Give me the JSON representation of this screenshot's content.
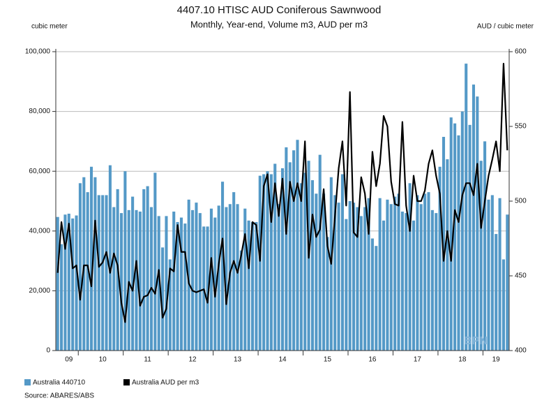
{
  "chart_data": {
    "type": "bar_line",
    "title": "4407.10 HTISC AUD Coniferous Sawnwood",
    "subtitle": "Monthly, Year-end, Volume m3, AUD per m3",
    "y_label": "cubic meter",
    "y2_label": "AUD / cubic meter",
    "source": "Source: ABARES/ABS",
    "watermark": "BPN",
    "grid": true,
    "categories": [
      null,
      null,
      null,
      "09",
      null,
      null,
      null,
      null,
      null,
      null,
      null,
      null,
      "10",
      null,
      null,
      null,
      null,
      null,
      null,
      null,
      null,
      null,
      null,
      null,
      "11",
      null,
      null,
      null,
      null,
      null,
      null,
      null,
      null,
      null,
      null,
      null,
      "12",
      null,
      null,
      null,
      null,
      null,
      null,
      null,
      null,
      null,
      null,
      null,
      "13",
      null,
      null,
      null,
      null,
      null,
      null,
      null,
      null,
      null,
      null,
      null,
      "14",
      null,
      null,
      null,
      null,
      null,
      null,
      null,
      null,
      null,
      null,
      null,
      "15",
      null,
      null,
      null,
      null,
      null,
      null,
      null,
      null,
      null,
      null,
      null,
      "16",
      null,
      null,
      null,
      null,
      null,
      null,
      null,
      null,
      null,
      null,
      null,
      "17",
      null,
      null,
      null,
      null,
      null,
      null,
      null,
      null,
      null,
      null,
      null,
      "18",
      null,
      null,
      null,
      null,
      null,
      null,
      null,
      null,
      "19",
      null,
      null,
      null
    ],
    "series": [
      {
        "name": "Australia 440710",
        "color": "#5499c7",
        "axis": "y",
        "values": [
          44700,
          35600,
          45500,
          45800,
          44200,
          45200,
          56000,
          58000,
          53000,
          61500,
          58000,
          52000,
          52000,
          52000,
          62000,
          48000,
          54000,
          46000,
          60000,
          47000,
          51500,
          47000,
          46500,
          54000,
          55000,
          48000,
          59500,
          45000,
          34500,
          45000,
          30500,
          46500,
          43000,
          44500,
          42500,
          50500,
          47000,
          49500,
          46000,
          41500,
          41500,
          47500,
          44500,
          48500,
          56500,
          48000,
          49000,
          53000,
          49000,
          33500,
          47500,
          43500,
          43000,
          43000,
          58500,
          59000,
          60000,
          59000,
          62500,
          49000,
          61000,
          68000,
          63000,
          67000,
          70500,
          56000,
          59500,
          63500,
          57000,
          52500,
          65500,
          52500,
          38000,
          58000,
          52000,
          49500,
          59000,
          44000,
          50000,
          49500,
          48000,
          45000,
          48000,
          51000,
          37500,
          35000,
          51000,
          43500,
          50500,
          49000,
          51500,
          52500,
          46500,
          46000,
          56000,
          43500,
          52000,
          49000,
          52500,
          53000,
          47000,
          46000,
          61500,
          71500,
          64000,
          78000,
          76000,
          72000,
          80000,
          96000,
          75500,
          89000,
          85000,
          63500,
          70000,
          50500,
          52000,
          39000,
          51000,
          30500,
          45500
        ]
      },
      {
        "name": "Australia AUD per m3",
        "color": "#000000",
        "axis": "y2",
        "values": [
          452,
          486,
          468,
          485,
          455,
          457,
          434,
          457,
          457,
          443,
          487,
          456,
          459,
          466,
          452,
          465,
          457,
          432,
          419,
          446,
          440,
          460,
          430,
          436,
          437,
          442,
          438,
          454,
          422,
          428,
          455,
          453,
          484,
          466,
          466,
          445,
          440,
          439,
          440,
          441,
          432,
          462,
          436,
          458,
          475,
          431,
          452,
          460,
          452,
          464,
          478,
          455,
          486,
          484,
          460,
          510,
          518,
          486,
          512,
          490,
          515,
          478,
          513,
          500,
          512,
          500,
          540,
          462,
          491,
          476,
          481,
          508,
          470,
          458,
          490,
          522,
          540,
          497,
          573,
          479,
          476,
          516,
          505,
          478,
          533,
          510,
          525,
          557,
          550,
          513,
          498,
          497,
          553,
          497,
          480,
          517,
          500,
          500,
          507,
          525,
          534,
          517,
          505,
          460,
          480,
          460,
          494,
          486,
          504,
          512,
          512,
          504,
          525,
          482,
          500,
          517,
          528,
          540,
          520,
          592,
          534
        ]
      }
    ],
    "ylim": [
      0,
      100000
    ],
    "yticks": [
      0,
      {
        "value": 20000,
        "label": "20,000"
      },
      {
        "value": 40000,
        "label": "40,000"
      },
      {
        "value": 60000,
        "label": "60,000"
      },
      {
        "value": 80000,
        "label": "80,000"
      },
      {
        "value": 100000,
        "label": "100,000"
      }
    ],
    "y2lim": [
      400,
      600
    ],
    "y2ticks": [
      400,
      450,
      500,
      550,
      600
    ]
  }
}
